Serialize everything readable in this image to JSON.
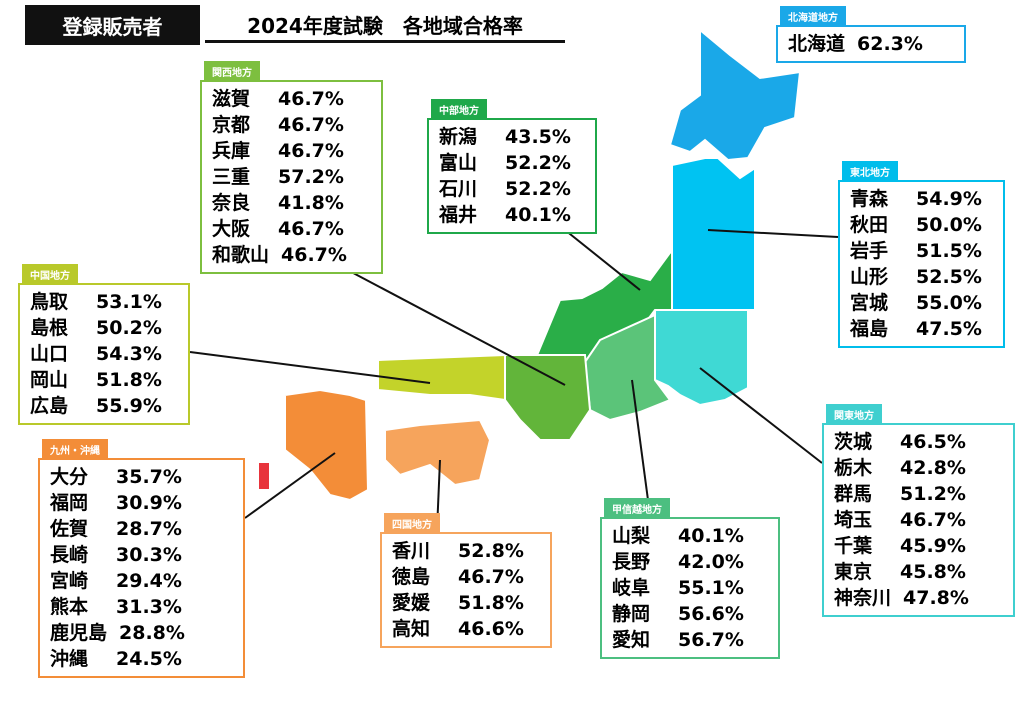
{
  "header": {
    "badge": "登録販売者",
    "title": "2024年度試験　各地域合格率"
  },
  "regions": [
    {
      "name": "北海道地方",
      "rows": [
        {
          "pref": "北海道",
          "rate": "62.3%"
        }
      ]
    },
    {
      "name": "関西地方",
      "rows": [
        {
          "pref": "滋賀",
          "rate": "46.7%"
        },
        {
          "pref": "京都",
          "rate": "46.7%"
        },
        {
          "pref": "兵庫",
          "rate": "46.7%"
        },
        {
          "pref": "三重",
          "rate": "57.2%"
        },
        {
          "pref": "奈良",
          "rate": "41.8%"
        },
        {
          "pref": "大阪",
          "rate": "46.7%"
        },
        {
          "pref": "和歌山",
          "rate": "46.7%"
        }
      ]
    },
    {
      "name": "中部地方",
      "rows": [
        {
          "pref": "新潟",
          "rate": "43.5%"
        },
        {
          "pref": "富山",
          "rate": "52.2%"
        },
        {
          "pref": "石川",
          "rate": "52.2%"
        },
        {
          "pref": "福井",
          "rate": "40.1%"
        }
      ]
    },
    {
      "name": "東北地方",
      "rows": [
        {
          "pref": "青森",
          "rate": "54.9%"
        },
        {
          "pref": "秋田",
          "rate": "50.0%"
        },
        {
          "pref": "岩手",
          "rate": "51.5%"
        },
        {
          "pref": "山形",
          "rate": "52.5%"
        },
        {
          "pref": "宮城",
          "rate": "55.0%"
        },
        {
          "pref": "福島",
          "rate": "47.5%"
        }
      ]
    },
    {
      "name": "中国地方",
      "rows": [
        {
          "pref": "鳥取",
          "rate": "53.1%"
        },
        {
          "pref": "島根",
          "rate": "50.2%"
        },
        {
          "pref": "山口",
          "rate": "54.3%"
        },
        {
          "pref": "岡山",
          "rate": "51.8%"
        },
        {
          "pref": "広島",
          "rate": "55.9%"
        }
      ]
    },
    {
      "name": "九州・沖縄",
      "rows": [
        {
          "pref": "大分",
          "rate": "35.7%"
        },
        {
          "pref": "福岡",
          "rate": "30.9%"
        },
        {
          "pref": "佐賀",
          "rate": "28.7%"
        },
        {
          "pref": "長崎",
          "rate": "30.3%"
        },
        {
          "pref": "宮崎",
          "rate": "29.4%"
        },
        {
          "pref": "熊本",
          "rate": "31.3%"
        },
        {
          "pref": "鹿児島",
          "rate": "28.8%"
        },
        {
          "pref": "沖縄",
          "rate": "24.5%"
        }
      ]
    },
    {
      "name": "四国地方",
      "rows": [
        {
          "pref": "香川",
          "rate": "52.8%"
        },
        {
          "pref": "徳島",
          "rate": "46.7%"
        },
        {
          "pref": "愛媛",
          "rate": "51.8%"
        },
        {
          "pref": "高知",
          "rate": "46.6%"
        }
      ]
    },
    {
      "name": "甲信越地方",
      "rows": [
        {
          "pref": "山梨",
          "rate": "40.1%"
        },
        {
          "pref": "長野",
          "rate": "42.0%"
        },
        {
          "pref": "岐阜",
          "rate": "55.1%"
        },
        {
          "pref": "静岡",
          "rate": "56.6%"
        },
        {
          "pref": "愛知",
          "rate": "56.7%"
        }
      ]
    },
    {
      "name": "関東地方",
      "rows": [
        {
          "pref": "茨城",
          "rate": "46.5%"
        },
        {
          "pref": "栃木",
          "rate": "42.8%"
        },
        {
          "pref": "群馬",
          "rate": "51.2%"
        },
        {
          "pref": "埼玉",
          "rate": "46.7%"
        },
        {
          "pref": "千葉",
          "rate": "45.9%"
        },
        {
          "pref": "東京",
          "rate": "45.8%"
        },
        {
          "pref": "神奈川",
          "rate": "47.8%"
        }
      ]
    }
  ]
}
